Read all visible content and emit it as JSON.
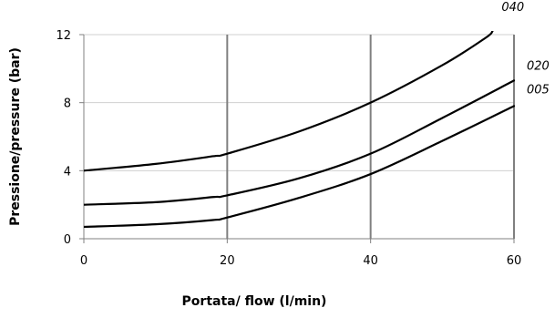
{
  "chart_data": {
    "type": "line",
    "title": "",
    "xlabel": "Portata/ flow (l/min)",
    "ylabel": "Pressione/pressure  (bar)",
    "xlim": [
      0,
      60
    ],
    "ylim": [
      0,
      12
    ],
    "x_ticks": [
      "0",
      "20",
      "40",
      "60"
    ],
    "y_ticks": [
      "0",
      "4",
      "8",
      "12"
    ],
    "x_tick_values": [
      0,
      20,
      40,
      60
    ],
    "y_tick_values": [
      0,
      4,
      8,
      12
    ],
    "grid": {
      "vertical": true,
      "horizontal": true
    },
    "colors": {
      "line": "#000000",
      "vgrid": "#808080",
      "hgrid": "#d0d0d0",
      "axis": "#808080"
    },
    "series": [
      {
        "name": "040",
        "points": [
          [
            0,
            4.0
          ],
          [
            10,
            4.4
          ],
          [
            18,
            4.85
          ],
          [
            20,
            5.0
          ],
          [
            30,
            6.3
          ],
          [
            40,
            8.0
          ],
          [
            50,
            10.2
          ],
          [
            56,
            11.8
          ],
          [
            57,
            12.2
          ]
        ]
      },
      {
        "name": "020",
        "points": [
          [
            0,
            2.0
          ],
          [
            10,
            2.15
          ],
          [
            18,
            2.45
          ],
          [
            20,
            2.55
          ],
          [
            30,
            3.55
          ],
          [
            40,
            5.0
          ],
          [
            50,
            7.1
          ],
          [
            60,
            9.3
          ]
        ]
      },
      {
        "name": "005",
        "points": [
          [
            0,
            0.7
          ],
          [
            10,
            0.85
          ],
          [
            18,
            1.1
          ],
          [
            20,
            1.25
          ],
          [
            30,
            2.4
          ],
          [
            40,
            3.8
          ],
          [
            50,
            5.75
          ],
          [
            60,
            7.8
          ]
        ]
      }
    ]
  }
}
